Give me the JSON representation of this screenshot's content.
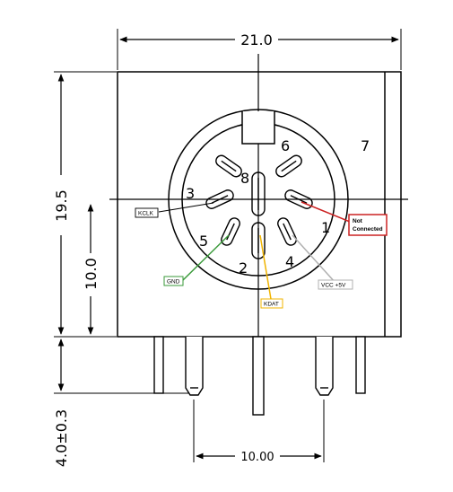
{
  "dimensions": {
    "width_top": "21.0",
    "height_body": "19.5",
    "height_center": "10.0",
    "pin_length": "4.0±0.3",
    "pin_spacing": "10.00"
  },
  "pins": {
    "p1": "1",
    "p2": "2",
    "p3": "3",
    "p4": "4",
    "p5": "5",
    "p6": "6",
    "p7": "7",
    "p8": "8"
  },
  "signals": {
    "kclk": "KCLK",
    "gnd": "GND",
    "kdat": "KDAT",
    "vcc": "VCC +5V",
    "nc_line1": "Not",
    "nc_line2": "Connected"
  },
  "colors": {
    "kclk_line": "#000000",
    "gnd_line": "#3a9a3a",
    "kdat_line": "#f0b400",
    "vcc_line": "#b0b0b0",
    "nc_line": "#cc2222"
  }
}
